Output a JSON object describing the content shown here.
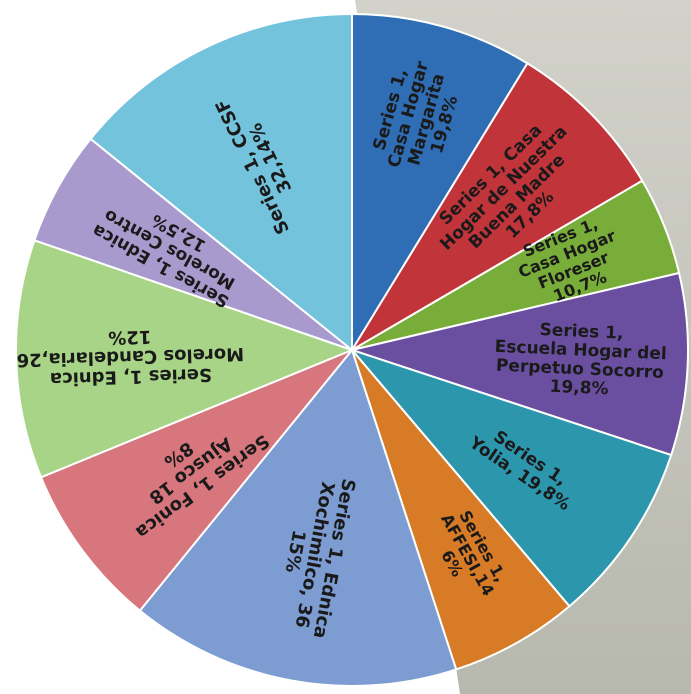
{
  "chart_data": {
    "type": "pie",
    "title": "",
    "slices": [
      {
        "label_lines": [
          "Series 1,",
          "Casa Hogar",
          "Margarita",
          "19,8%"
        ],
        "value": 19.8,
        "color": "#2F6DB5"
      },
      {
        "label_lines": [
          "Series 1, Casa",
          "Hogar de Nuestra",
          "Buena Madre",
          "17,8%"
        ],
        "value": 17.8,
        "color": "#C0343A"
      },
      {
        "label_lines": [
          "Series 1,",
          "Casa Hogar",
          "Floreser",
          "10,7%"
        ],
        "value": 10.7,
        "color": "#79AD3A"
      },
      {
        "label_lines": [
          "Series 1,",
          "Escuela Hogar del",
          "Perpetuo Socorro",
          "19,8%"
        ],
        "value": 19.8,
        "color": "#6A4FA0"
      },
      {
        "label_lines": [
          "Series 1,",
          "Yolia, 19,8%"
        ],
        "value": 19.8,
        "color": "#2C96AC"
      },
      {
        "label_lines": [
          "Series 1,",
          "AFFESI,14",
          "6%"
        ],
        "value": 14,
        "color": "#D77B27"
      },
      {
        "label_lines": [
          "Series 1, Ednica",
          "Xochimilco, 36",
          "15%"
        ],
        "value": 36,
        "color": "#7D9CD2"
      },
      {
        "label_lines": [
          "Series 1, Fonica",
          "Ajusco 18",
          "8%"
        ],
        "value": 18,
        "color": "#D7767C"
      },
      {
        "label_lines": [
          "Series 1, Ednica",
          "Morelos Candelaria,26",
          "12%"
        ],
        "value": 26,
        "color": "#A8D487"
      },
      {
        "label_lines": [
          "Series 1, Ednica",
          "Morelos Centro",
          "12,5%"
        ],
        "value": 12.5,
        "color": "#A99ACD"
      },
      {
        "label_lines": [
          "Series 1, CCSF",
          "32,14%"
        ],
        "value": 32.14,
        "color": "#73C3DD"
      }
    ],
    "background_color": "#C7C7BE"
  }
}
